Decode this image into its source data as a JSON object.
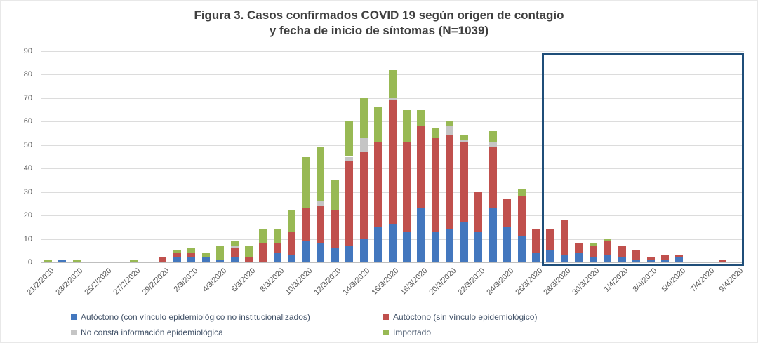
{
  "title": {
    "line1": "Figura 3. Casos confirmados COVID 19 según origen de contagio",
    "line2": "y fecha de inicio de síntomas (N=1039)"
  },
  "chart_data": {
    "type": "bar",
    "stacked": true,
    "title": "Figura 3. Casos confirmados COVID 19 según origen de contagio y fecha de inicio de síntomas (N=1039)",
    "n_total": 1039,
    "xlabel": "",
    "ylabel": "",
    "ylim": [
      0,
      90
    ],
    "y_ticks": [
      0,
      10,
      20,
      30,
      40,
      50,
      60,
      70,
      80,
      90
    ],
    "grid": true,
    "legend_position": "bottom",
    "x": [
      "21/2/2020",
      "22/2/2020",
      "23/2/2020",
      "24/2/2020",
      "25/2/2020",
      "26/2/2020",
      "27/2/2020",
      "28/2/2020",
      "29/2/2020",
      "1/3/2020",
      "2/3/2020",
      "3/3/2020",
      "4/3/2020",
      "5/3/2020",
      "6/3/2020",
      "7/3/2020",
      "8/3/2020",
      "9/3/2020",
      "10/3/2020",
      "11/3/2020",
      "12/3/2020",
      "13/3/2020",
      "14/3/2020",
      "15/3/2020",
      "16/3/2020",
      "17/3/2020",
      "18/3/2020",
      "19/3/2020",
      "20/3/2020",
      "21/3/2020",
      "22/3/2020",
      "23/3/2020",
      "24/3/2020",
      "25/3/2020",
      "26/3/2020",
      "27/3/2020",
      "28/3/2020",
      "29/3/2020",
      "30/3/2020",
      "31/3/2020",
      "1/4/2020",
      "2/4/2020",
      "3/4/2020",
      "4/4/2020",
      "5/4/2020",
      "6/4/2020",
      "7/4/2020",
      "8/4/2020",
      "9/4/2020"
    ],
    "x_label_every": 2,
    "series": [
      {
        "name": "Autóctono (con vínculo epidemiológico no institucionalizados)",
        "color": "#4377be",
        "values": [
          0,
          1,
          0,
          0,
          0,
          0,
          0,
          0,
          0,
          2,
          2,
          2,
          1,
          2,
          0,
          0,
          4,
          3,
          9,
          8,
          6,
          7,
          10,
          15,
          16,
          13,
          23,
          13,
          14,
          17,
          13,
          23,
          15,
          11,
          4,
          5,
          3,
          4,
          2,
          3,
          2,
          1,
          1,
          1,
          2,
          0,
          0,
          0,
          0
        ]
      },
      {
        "name": "Autóctono (sin vínculo epidemiológico)",
        "color": "#c0504d",
        "values": [
          0,
          0,
          0,
          0,
          0,
          0,
          0,
          0,
          2,
          2,
          2,
          0,
          0,
          4,
          2,
          8,
          4,
          10,
          14,
          16,
          16,
          36,
          37,
          36,
          53,
          38,
          35,
          40,
          40,
          34,
          17,
          26,
          12,
          17,
          10,
          9,
          15,
          4,
          5,
          6,
          5,
          4,
          1,
          2,
          1,
          0,
          0,
          1,
          0
        ]
      },
      {
        "name": "No consta información epidemiológica",
        "color": "#c5c5c5",
        "values": [
          0,
          0,
          0,
          0,
          0,
          0,
          0,
          0,
          0,
          0,
          0,
          0,
          0,
          1,
          0,
          0,
          0,
          0,
          0,
          2,
          0,
          2,
          6,
          0,
          1,
          0,
          0,
          0,
          4,
          1,
          0,
          2,
          0,
          0,
          0,
          0,
          0,
          0,
          0,
          0,
          0,
          0,
          0,
          0,
          0,
          0,
          0,
          0,
          0
        ]
      },
      {
        "name": "Importado",
        "color": "#98b954",
        "values": [
          1,
          0,
          1,
          0,
          0,
          0,
          1,
          0,
          0,
          1,
          2,
          2,
          6,
          2,
          5,
          6,
          6,
          9,
          22,
          23,
          13,
          15,
          17,
          15,
          12,
          14,
          7,
          4,
          2,
          2,
          0,
          5,
          0,
          3,
          0,
          0,
          0,
          0,
          1,
          1,
          0,
          0,
          0,
          0,
          0,
          0,
          0,
          0,
          0
        ]
      }
    ],
    "annotation_box": {
      "from_date": "27/3/2020",
      "to_date": "9/4/2020",
      "border_color": "#1f4e79"
    }
  },
  "legend": {
    "items": [
      {
        "series_index": 0
      },
      {
        "series_index": 1
      },
      {
        "series_index": 2
      },
      {
        "series_index": 3
      }
    ]
  }
}
